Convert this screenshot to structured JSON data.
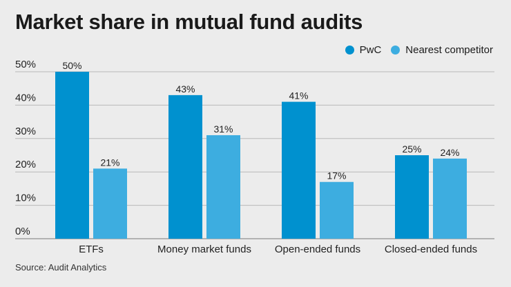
{
  "title": "Market share in mutual fund audits",
  "source": "Source: Audit Analytics",
  "legend": [
    {
      "label": "PwC",
      "color": "#0091cf"
    },
    {
      "label": "Nearest competitor",
      "color": "#3dade0"
    }
  ],
  "chart_data": {
    "type": "bar",
    "categories": [
      "ETFs",
      "Money market funds",
      "Open-ended funds",
      "Closed-ended funds"
    ],
    "series": [
      {
        "name": "PwC",
        "values": [
          50,
          43,
          41,
          25
        ],
        "labels": [
          "50%",
          "43%",
          "41%",
          "25%"
        ]
      },
      {
        "name": "Nearest competitor",
        "values": [
          21,
          31,
          17,
          24
        ],
        "labels": [
          "21%",
          "31%",
          "17%",
          "24%"
        ]
      }
    ],
    "yticks": [
      "0%",
      "10%",
      "20%",
      "30%",
      "40%",
      "50%"
    ],
    "ylim": [
      0,
      50
    ],
    "grid": true,
    "legend_position": "top-right"
  }
}
